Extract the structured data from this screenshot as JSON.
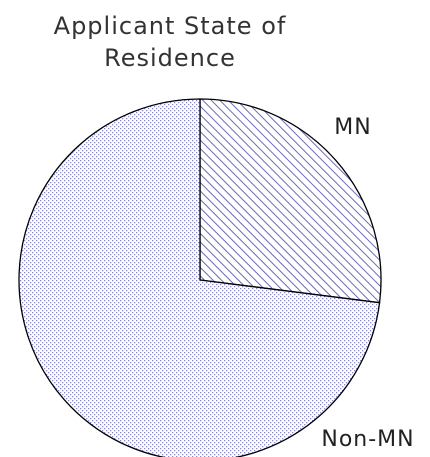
{
  "chart_data": {
    "type": "pie",
    "title": "Applicant State of Residence",
    "categories": [
      "MN",
      "Non-MN"
    ],
    "values": [
      27,
      73
    ],
    "colors": [
      "#6a6ab8",
      "#8a8ac4"
    ],
    "patterns": [
      "hatch",
      "dots"
    ]
  }
}
